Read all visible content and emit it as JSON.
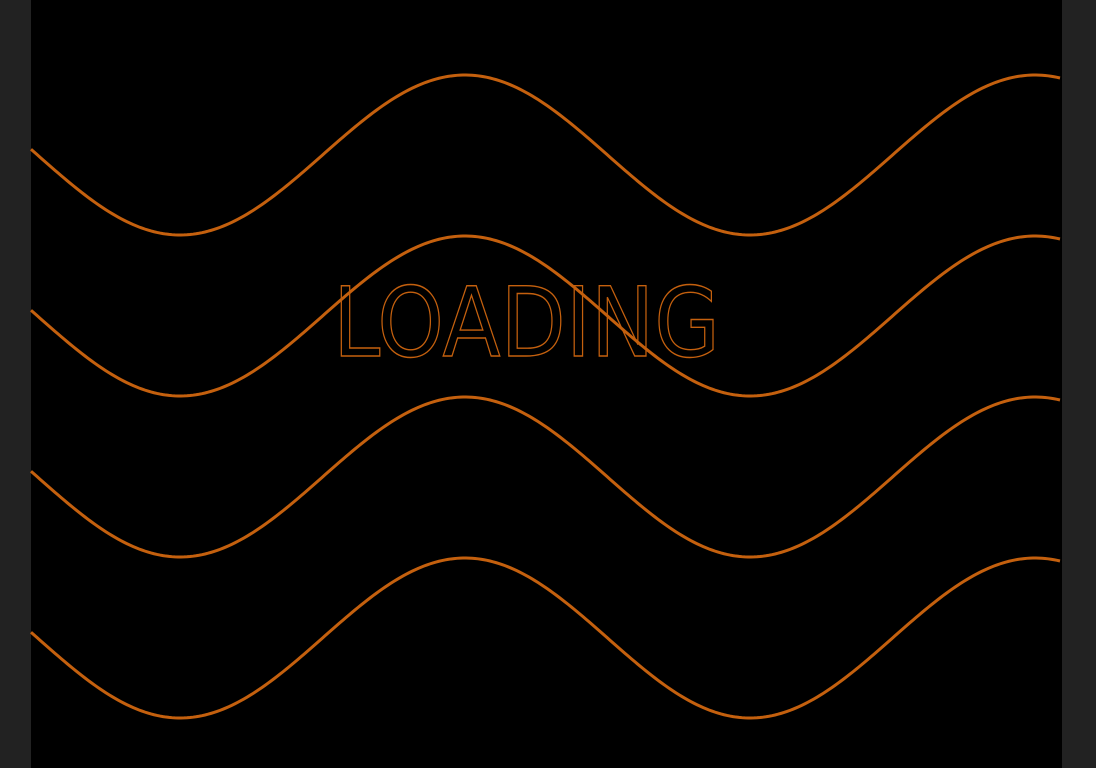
{
  "loading": {
    "text": "LOADING"
  }
}
